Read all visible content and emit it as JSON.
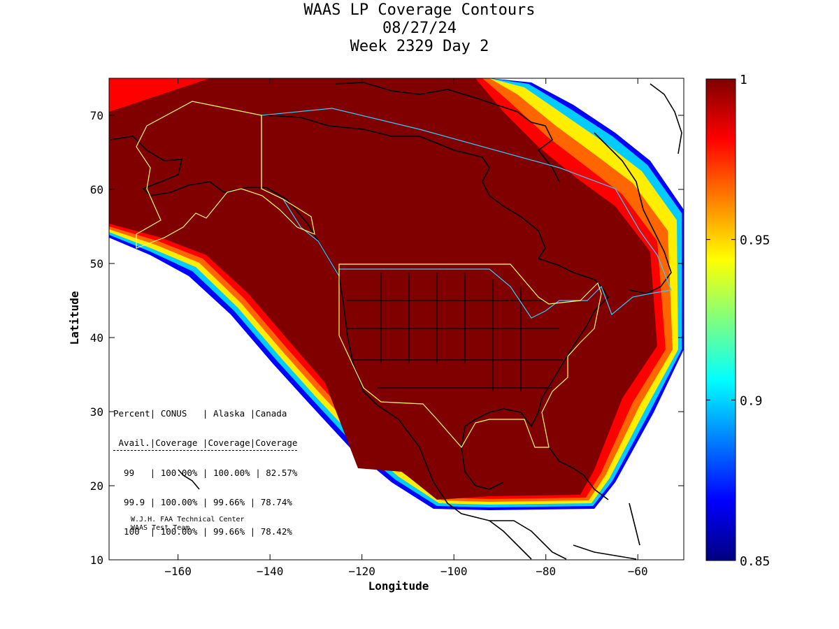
{
  "title": {
    "line1": "WAAS LP Coverage Contours",
    "line2": "08/27/24",
    "line3": "Week 2329 Day 2"
  },
  "axes": {
    "xlabel": "Longitude",
    "ylabel": "Latitude",
    "xlim": [
      -175,
      -50
    ],
    "ylim": [
      10,
      75
    ],
    "xticks": [
      -160,
      -140,
      -120,
      -100,
      -80,
      -60
    ],
    "yticks": [
      10,
      20,
      30,
      40,
      50,
      60,
      70
    ]
  },
  "colorbar": {
    "colormap": "jet",
    "range": [
      0.85,
      1
    ],
    "tick_values": [
      0.85,
      0.9,
      0.95,
      1
    ],
    "tick_labels": [
      "0.85",
      "0.9",
      "0.95",
      "1"
    ]
  },
  "stats_table": {
    "header1": "Percent| CONUS   | Alaska |Canada",
    "header2": " Avail.|Coverage |Coverage|Coverage",
    "rows": [
      "  99   | 100.00% | 100.00% | 82.57%",
      "  99.9 | 100.00% | 99.66% | 78.74%",
      "  100  | 100.00% | 99.66% | 78.42%"
    ]
  },
  "credit": {
    "line1": "W.J.H. FAA Technical Center",
    "line2": "WAAS Test Team"
  },
  "colors": {
    "coverage_full": "#800000",
    "service_boundary_conus": "#ffff66",
    "service_boundary_canada": "#33ccff",
    "coastline": "#000000"
  }
}
